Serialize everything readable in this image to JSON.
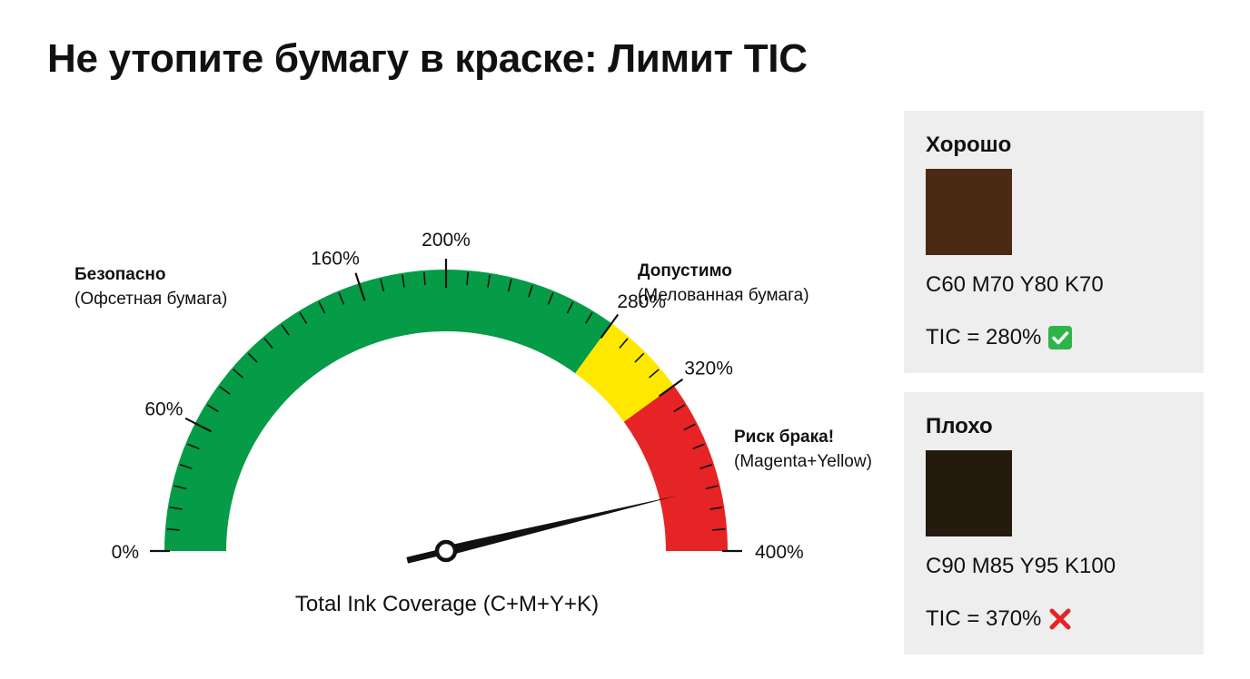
{
  "title": "Не утопите бумагу в краске: Лимит TIC",
  "gauge": {
    "min": 0,
    "max": 400,
    "tick_labels": [
      {
        "value": 0,
        "text": "0%"
      },
      {
        "value": 60,
        "text": "60%"
      },
      {
        "value": 160,
        "text": "160%"
      },
      {
        "value": 200,
        "text": "200%"
      },
      {
        "value": 280,
        "text": "280%"
      },
      {
        "value": 320,
        "text": "320%"
      },
      {
        "value": 400,
        "text": "400%"
      }
    ],
    "minor_tick_step": 10,
    "zones": [
      {
        "from": 0,
        "to": 280,
        "color": "#069b47"
      },
      {
        "from": 280,
        "to": 320,
        "color": "#ffe800"
      },
      {
        "from": 320,
        "to": 400,
        "color": "#e62325"
      }
    ],
    "needle_value": 370,
    "axis_label": "Total Ink Coverage (C+M+Y+K)",
    "zone_labels": {
      "safe": {
        "title": "Безопасно",
        "subtitle": "(Офсетная бумага)"
      },
      "acceptable": {
        "title": "Допустимо",
        "subtitle": "(Мелованная бумага)"
      },
      "risk": {
        "title": "Риск брака!",
        "subtitle": "(Magenta+Yellow)"
      }
    }
  },
  "cards": {
    "good": {
      "title": "Хорошо",
      "swatch_color": "#4a2a12",
      "cmyk": "C60 M70 Y80 K70",
      "tic": "TIC = 280%",
      "icon": "check-icon",
      "icon_color": "#2fb44a"
    },
    "bad": {
      "title": "Плохо",
      "swatch_color": "#241a0d",
      "cmyk": "C90 M85 Y95 K100",
      "tic": "TIC = 370%",
      "icon": "cross-icon",
      "icon_color": "#e62325"
    }
  }
}
